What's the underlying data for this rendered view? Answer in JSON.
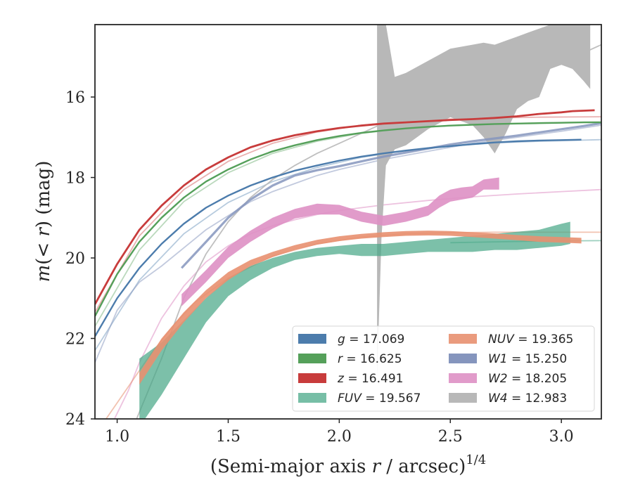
{
  "chart_data": {
    "type": "line",
    "xlabel": "(Semi-major axis r / arcsec)",
    "xlabel_parts": {
      "pre": "(Semi-major axis ",
      "var": "r",
      "post": " / arcsec)",
      "sup": "1/4"
    },
    "ylabel": "m(< r) (mag)",
    "ylabel_parts": {
      "var": "m",
      "open": "(",
      "lt": "< ",
      "var2": "r",
      "close": ")",
      "unit": " (mag)"
    },
    "xlim": [
      0.9,
      3.18
    ],
    "ylim": [
      24,
      14.2
    ],
    "y_inverted": true,
    "x_ticks": [
      "1.0",
      "1.5",
      "2.0",
      "2.5",
      "3.0"
    ],
    "y_ticks": [
      "16",
      "18",
      "20",
      "22",
      "24"
    ],
    "grid": false,
    "legend_position": "lower-right",
    "series": [
      {
        "key": "g",
        "name": "g = 17.069",
        "band": "g",
        "total": "17.069",
        "color": "#4c7cac",
        "kind": "line",
        "width": 2.4,
        "x": [
          0.9,
          1.0,
          1.1,
          1.2,
          1.3,
          1.4,
          1.5,
          1.6,
          1.7,
          1.8,
          1.9,
          2.0,
          2.1,
          2.2,
          2.3,
          2.4,
          2.5,
          2.6,
          2.7,
          2.8,
          2.9,
          3.0,
          3.09
        ],
        "y": [
          21.95,
          21.0,
          20.25,
          19.65,
          19.15,
          18.75,
          18.45,
          18.2,
          18.0,
          17.83,
          17.7,
          17.58,
          17.48,
          17.4,
          17.33,
          17.27,
          17.22,
          17.17,
          17.13,
          17.1,
          17.08,
          17.07,
          17.06
        ]
      },
      {
        "key": "r",
        "name": "r = 16.625",
        "band": "r",
        "total": "16.625",
        "color": "#55a05a",
        "kind": "line",
        "width": 2.4,
        "x": [
          0.9,
          1.0,
          1.1,
          1.2,
          1.3,
          1.4,
          1.5,
          1.6,
          1.7,
          1.8,
          1.9,
          2.0,
          2.1,
          2.2,
          2.3,
          2.4,
          2.5,
          2.6,
          2.7,
          2.8,
          2.9,
          3.0,
          3.1,
          3.18
        ],
        "y": [
          21.45,
          20.4,
          19.6,
          19.0,
          18.5,
          18.1,
          17.8,
          17.55,
          17.35,
          17.2,
          17.07,
          16.97,
          16.89,
          16.83,
          16.78,
          16.74,
          16.71,
          16.69,
          16.67,
          16.66,
          16.65,
          16.64,
          16.63,
          16.63
        ]
      },
      {
        "key": "z",
        "name": "z = 16.491",
        "band": "z",
        "total": "16.491",
        "color": "#c83c3c",
        "kind": "line",
        "width": 2.8,
        "x": [
          0.9,
          1.0,
          1.1,
          1.2,
          1.3,
          1.4,
          1.5,
          1.6,
          1.7,
          1.8,
          1.9,
          2.0,
          2.1,
          2.2,
          2.3,
          2.4,
          2.5,
          2.6,
          2.7,
          2.8,
          2.9,
          3.0,
          3.05,
          3.15
        ],
        "y": [
          21.15,
          20.15,
          19.3,
          18.7,
          18.2,
          17.8,
          17.5,
          17.25,
          17.08,
          16.95,
          16.85,
          16.77,
          16.71,
          16.66,
          16.63,
          16.6,
          16.57,
          16.55,
          16.52,
          16.48,
          16.42,
          16.38,
          16.35,
          16.33
        ]
      },
      {
        "key": "fuv",
        "name": "FUV = 19.567",
        "band": "FUV",
        "total": "19.567",
        "color": "#4aa888",
        "kind": "band",
        "opacity": 0.72,
        "x": [
          1.1,
          1.2,
          1.3,
          1.4,
          1.5,
          1.6,
          1.7,
          1.8,
          1.9,
          2.0,
          2.1,
          2.2,
          2.3,
          2.4,
          2.5,
          2.6,
          2.7,
          2.8,
          2.9,
          3.0,
          3.04
        ],
        "y_low": [
          22.5,
          22.1,
          21.55,
          21.0,
          20.5,
          20.2,
          20.0,
          19.85,
          19.75,
          19.7,
          19.65,
          19.65,
          19.6,
          19.55,
          19.5,
          19.45,
          19.4,
          19.35,
          19.3,
          19.15,
          19.1
        ],
        "y_high": [
          24.2,
          23.4,
          22.5,
          21.6,
          20.95,
          20.55,
          20.25,
          20.05,
          19.95,
          19.9,
          19.95,
          19.95,
          19.9,
          19.85,
          19.85,
          19.85,
          19.8,
          19.8,
          19.75,
          19.7,
          19.65
        ]
      },
      {
        "key": "nuv",
        "name": "NUV = 19.365",
        "band": "NUV",
        "total": "19.365",
        "color": "#e89070",
        "kind": "band",
        "opacity": 0.9,
        "x": [
          1.1,
          1.2,
          1.3,
          1.4,
          1.5,
          1.6,
          1.7,
          1.8,
          1.9,
          2.0,
          2.1,
          2.2,
          2.3,
          2.4,
          2.5,
          2.6,
          2.7,
          2.8,
          2.9,
          3.0,
          3.09
        ],
        "y_low": [
          22.85,
          22.0,
          21.35,
          20.8,
          20.35,
          20.05,
          19.85,
          19.68,
          19.55,
          19.46,
          19.4,
          19.36,
          19.33,
          19.32,
          19.33,
          19.36,
          19.39,
          19.43,
          19.46,
          19.48,
          19.5
        ],
        "y_high": [
          23.15,
          22.3,
          21.6,
          21.0,
          20.55,
          20.2,
          19.98,
          19.8,
          19.67,
          19.58,
          19.52,
          19.48,
          19.45,
          19.44,
          19.45,
          19.48,
          19.52,
          19.56,
          19.6,
          19.62,
          19.64
        ]
      },
      {
        "key": "w1",
        "name": "W1 = 15.250",
        "band": "W1",
        "total": "15.250",
        "color": "#8595bd",
        "kind": "line",
        "width": 3.2,
        "opacity": 0.85,
        "x": [
          1.29,
          1.4,
          1.5,
          1.6,
          1.7,
          1.8,
          1.9,
          2.0,
          2.1,
          2.2,
          2.3,
          2.4,
          2.5,
          2.6,
          2.7,
          2.8,
          2.9,
          3.0,
          3.1,
          3.18
        ],
        "y": [
          20.25,
          19.6,
          19.0,
          18.55,
          18.2,
          17.95,
          17.82,
          17.72,
          17.6,
          17.48,
          17.38,
          17.28,
          17.18,
          17.1,
          17.03,
          16.96,
          16.88,
          16.8,
          16.72,
          16.65
        ]
      },
      {
        "key": "w2",
        "name": "W2 = 18.205",
        "band": "W2",
        "total": "18.205",
        "color": "#de90c4",
        "kind": "band",
        "opacity": 0.9,
        "x": [
          1.29,
          1.4,
          1.5,
          1.6,
          1.7,
          1.8,
          1.9,
          2.0,
          2.1,
          2.2,
          2.3,
          2.4,
          2.45,
          2.5,
          2.55,
          2.6,
          2.65,
          2.72
        ],
        "y_low": [
          20.9,
          20.3,
          19.72,
          19.32,
          19.0,
          18.78,
          18.65,
          18.68,
          18.85,
          18.95,
          18.85,
          18.7,
          18.45,
          18.3,
          18.25,
          18.22,
          18.05,
          18.0
        ],
        "y_high": [
          21.2,
          20.6,
          20.0,
          19.6,
          19.27,
          19.02,
          18.92,
          18.92,
          19.1,
          19.2,
          19.1,
          18.95,
          18.75,
          18.6,
          18.55,
          18.5,
          18.3,
          18.3
        ]
      },
      {
        "key": "w4",
        "name": "W4 = 12.983",
        "band": "W4",
        "total": "12.983",
        "color": "#b8b8b8",
        "kind": "band",
        "opacity": 1.0,
        "x": [
          2.17,
          2.19,
          2.21,
          2.25,
          2.3,
          2.4,
          2.5,
          2.6,
          2.65,
          2.7,
          2.75,
          2.8,
          2.85,
          2.9,
          2.95,
          3.0,
          3.05,
          3.1,
          3.13
        ],
        "y_low": [
          23.0,
          19.5,
          17.7,
          17.3,
          17.2,
          16.8,
          16.5,
          16.7,
          17.0,
          17.4,
          16.9,
          16.3,
          16.1,
          16.0,
          15.3,
          15.2,
          15.3,
          15.6,
          15.8
        ],
        "y_high": [
          14.2,
          14.2,
          14.2,
          15.5,
          15.4,
          15.1,
          14.8,
          14.7,
          14.65,
          14.7,
          14.6,
          14.5,
          14.4,
          14.3,
          14.2,
          14.2,
          14.2,
          14.2,
          14.2
        ]
      }
    ],
    "model_curves": [
      {
        "key": "g-model",
        "color": "#4c7cac",
        "opacity": 0.4,
        "x": [
          0.9,
          1.1,
          1.3,
          1.5,
          1.7,
          1.9,
          2.1,
          2.3,
          2.5,
          2.7,
          2.9,
          3.18
        ],
        "y": [
          22.3,
          20.55,
          19.4,
          18.62,
          18.1,
          17.75,
          17.5,
          17.33,
          17.22,
          17.14,
          17.1,
          17.06
        ]
      },
      {
        "key": "r-model",
        "color": "#55a05a",
        "opacity": 0.4,
        "x": [
          0.9,
          1.1,
          1.3,
          1.5,
          1.7,
          1.9,
          2.1,
          2.3,
          2.5,
          2.7,
          2.9,
          3.18
        ],
        "y": [
          21.7,
          19.8,
          18.6,
          17.88,
          17.4,
          17.1,
          16.9,
          16.78,
          16.71,
          16.67,
          16.64,
          16.62
        ]
      },
      {
        "key": "z-model",
        "color": "#c83c3c",
        "opacity": 0.4,
        "x": [
          0.9,
          1.1,
          1.3,
          1.5,
          1.7,
          1.9,
          2.1,
          2.3,
          2.5,
          2.7,
          2.9,
          3.18
        ],
        "y": [
          21.35,
          19.45,
          18.3,
          17.6,
          17.15,
          16.87,
          16.7,
          16.6,
          16.55,
          16.52,
          16.5,
          16.49
        ]
      },
      {
        "key": "w1-model",
        "color": "#8595bd",
        "opacity": 0.5,
        "x": [
          0.9,
          1.0,
          1.1,
          1.2,
          1.3,
          1.4,
          1.5,
          1.6,
          1.7,
          1.8,
          1.9,
          2.0,
          2.2,
          2.4,
          2.6,
          2.8,
          3.0,
          3.18
        ],
        "y": [
          22.6,
          21.3,
          20.6,
          20.2,
          19.75,
          19.3,
          18.95,
          18.6,
          18.35,
          18.15,
          17.95,
          17.8,
          17.55,
          17.35,
          17.15,
          17.0,
          16.85,
          16.7
        ]
      },
      {
        "key": "w2-model",
        "color": "#de90c4",
        "opacity": 0.55,
        "x": [
          0.97,
          1.05,
          1.1,
          1.2,
          1.3,
          1.4,
          1.5,
          1.6,
          1.7,
          1.8,
          1.9,
          2.0,
          2.2,
          2.4,
          2.6,
          2.8,
          3.0,
          3.18
        ],
        "y": [
          24.2,
          23.3,
          22.6,
          21.5,
          20.7,
          20.1,
          19.7,
          19.4,
          19.2,
          19.05,
          18.92,
          18.82,
          18.68,
          18.57,
          18.48,
          18.41,
          18.35,
          18.3
        ]
      },
      {
        "key": "nuv-model",
        "color": "#e89070",
        "opacity": 0.55,
        "x": [
          0.95,
          1.05,
          1.15,
          1.25,
          1.35,
          1.5,
          1.7,
          1.9,
          2.1,
          2.3,
          2.5,
          2.7,
          2.9,
          3.18
        ],
        "y": [
          24.0,
          23.2,
          22.4,
          21.7,
          21.1,
          20.5,
          19.95,
          19.65,
          19.48,
          19.4,
          19.37,
          19.36,
          19.36,
          19.36
        ]
      },
      {
        "key": "fuv-model",
        "color": "#4aa888",
        "opacity": 0.55,
        "x": [
          2.5,
          2.7,
          2.9,
          3.18
        ],
        "y": [
          19.62,
          19.6,
          19.58,
          19.57
        ]
      },
      {
        "key": "w4-model",
        "color": "#b8b8b8",
        "opacity": 0.9,
        "x": [
          1.05,
          1.2,
          1.3,
          1.4,
          1.5,
          1.6,
          1.7,
          1.8,
          1.9,
          2.0,
          2.2,
          2.4,
          2.6,
          2.8,
          3.0,
          3.18
        ],
        "y": [
          24.5,
          22.5,
          21.0,
          19.9,
          19.1,
          18.5,
          18.05,
          17.7,
          17.4,
          17.15,
          16.65,
          16.2,
          15.85,
          15.5,
          15.15,
          14.7
        ]
      }
    ],
    "legend_columns": [
      [
        "g",
        "r",
        "z",
        "fuv"
      ],
      [
        "nuv",
        "w1",
        "w2",
        "w4"
      ]
    ]
  }
}
